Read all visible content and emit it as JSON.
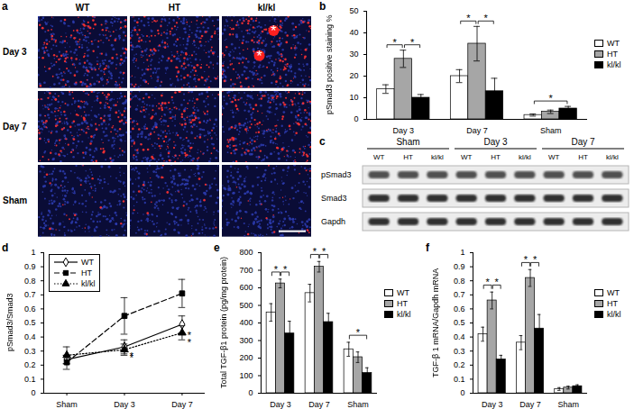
{
  "figure": {
    "panel_a": {
      "label": "a",
      "columns": [
        "WT",
        "HT",
        "kl/kl"
      ],
      "rows": [
        "Day 3",
        "Day 7",
        "Sham"
      ],
      "annotations": [
        {
          "row": "Day 3",
          "column": "kl/kl",
          "text": "*"
        },
        {
          "row": "Day 3",
          "column": "kl/kl",
          "text": "*"
        }
      ]
    },
    "panel_c": {
      "label": "c",
      "groups": [
        "Sham",
        "Day 3",
        "Day 7"
      ],
      "lanes": [
        "WT",
        "HT",
        "kl/kl"
      ],
      "bands": [
        "pSmad3",
        "Smad3",
        "Gapdh"
      ]
    }
  },
  "chart_data": [
    {
      "panel": "b",
      "type": "bar",
      "y_label": "pSmad3 positive staining %",
      "categories": [
        "Day 3",
        "Day 7",
        "Sham"
      ],
      "series": [
        {
          "name": "WT",
          "color": "#ffffff",
          "values": [
            14,
            20,
            2
          ],
          "errors": [
            2,
            3,
            0.5
          ]
        },
        {
          "name": "HT",
          "color": "#a6a6a6",
          "values": [
            28,
            35,
            3.5
          ],
          "errors": [
            4,
            8,
            0.8
          ]
        },
        {
          "name": "kl/kl",
          "color": "#000000",
          "values": [
            10,
            13,
            5
          ],
          "errors": [
            1.5,
            6,
            1
          ]
        }
      ],
      "ylim": [
        0,
        50
      ],
      "yticks": [
        0,
        10,
        20,
        30,
        40,
        50
      ],
      "legend": "right",
      "significance": [
        {
          "category": "Day 3",
          "between": [
            "WT",
            "HT"
          ],
          "text": "*"
        },
        {
          "category": "Day 3",
          "between": [
            "HT",
            "kl/kl"
          ],
          "text": "*"
        },
        {
          "category": "Day 7",
          "between": [
            "WT",
            "HT"
          ],
          "text": "*"
        },
        {
          "category": "Day 7",
          "between": [
            "HT",
            "kl/kl"
          ],
          "text": "*"
        },
        {
          "category": "Sham",
          "between": [
            "WT",
            "kl/kl"
          ],
          "text": "*"
        }
      ]
    },
    {
      "panel": "d",
      "type": "line",
      "y_label": "pSmad3/Smad3",
      "categories": [
        "Sham",
        "Day 3",
        "Day 7"
      ],
      "series": [
        {
          "name": "WT",
          "color": "#000000",
          "marker": "diamond",
          "line_style": "solid",
          "values": [
            0.24,
            0.33,
            0.49
          ],
          "errors": [
            0.03,
            0.05,
            0.06
          ]
        },
        {
          "name": "HT",
          "color": "#000000",
          "marker": "square",
          "line_style": "dashed",
          "values": [
            0.22,
            0.55,
            0.71
          ],
          "errors": [
            0.05,
            0.13,
            0.1
          ]
        },
        {
          "name": "kl/kl",
          "color": "#000000",
          "marker": "triangle",
          "line_style": "dotted",
          "values": [
            0.27,
            0.31,
            0.43
          ],
          "errors": [
            0.06,
            0.04,
            0.05
          ]
        }
      ],
      "ylim": [
        0,
        1
      ],
      "yticks": [
        0,
        0.1,
        0.2,
        0.3,
        0.4,
        0.5,
        0.6,
        0.7,
        0.8,
        0.9,
        1
      ],
      "legend": "top-left",
      "annotations": [
        {
          "text": "*",
          "category": "Day 3",
          "series": "WT"
        },
        {
          "text": "*",
          "category": "Day 3",
          "series": "kl/kl"
        },
        {
          "text": "*",
          "category": "Day 7",
          "series": "WT"
        },
        {
          "text": "*",
          "category": "Day 7",
          "series": "kl/kl"
        }
      ]
    },
    {
      "panel": "e",
      "type": "bar",
      "y_label": "Total TGF-β1 protein (pg/mg protein)",
      "categories": [
        "Day 3",
        "Day 7",
        "Sham"
      ],
      "series": [
        {
          "name": "WT",
          "color": "#ffffff",
          "values": [
            460,
            570,
            250
          ],
          "errors": [
            50,
            50,
            40
          ]
        },
        {
          "name": "HT",
          "color": "#a6a6a6",
          "values": [
            625,
            720,
            205
          ],
          "errors": [
            25,
            30,
            30
          ]
        },
        {
          "name": "kl/kl",
          "color": "#000000",
          "values": [
            340,
            405,
            115
          ],
          "errors": [
            70,
            50,
            30
          ]
        }
      ],
      "ylim": [
        0,
        800
      ],
      "yticks": [
        0,
        100,
        200,
        300,
        400,
        500,
        600,
        700,
        800
      ],
      "legend": "right",
      "significance": [
        {
          "category": "Day 3",
          "between": [
            "WT",
            "HT"
          ],
          "text": "*"
        },
        {
          "category": "Day 3",
          "between": [
            "HT",
            "kl/kl"
          ],
          "text": "*"
        },
        {
          "category": "Day 7",
          "between": [
            "WT",
            "HT"
          ],
          "text": "*"
        },
        {
          "category": "Day 7",
          "between": [
            "HT",
            "kl/kl"
          ],
          "text": "*"
        },
        {
          "category": "Sham",
          "between": [
            "WT",
            "kl/kl"
          ],
          "text": "*"
        }
      ]
    },
    {
      "panel": "f",
      "type": "bar",
      "y_label": "TGF-β 1 mRNA/Gapdh mRNA",
      "categories": [
        "Day 3",
        "Day 7",
        "Sham"
      ],
      "series": [
        {
          "name": "WT",
          "color": "#ffffff",
          "values": [
            0.42,
            0.36,
            0.03
          ],
          "errors": [
            0.05,
            0.05,
            0.01
          ]
        },
        {
          "name": "HT",
          "color": "#a6a6a6",
          "values": [
            0.66,
            0.82,
            0.04
          ],
          "errors": [
            0.06,
            0.06,
            0.01
          ]
        },
        {
          "name": "kl/kl",
          "color": "#000000",
          "values": [
            0.24,
            0.46,
            0.05
          ],
          "errors": [
            0.03,
            0.1,
            0.01
          ]
        }
      ],
      "ylim": [
        0,
        1
      ],
      "yticks": [
        0,
        0.1,
        0.2,
        0.3,
        0.4,
        0.5,
        0.6,
        0.7,
        0.8,
        0.9,
        1
      ],
      "legend": "right",
      "significance": [
        {
          "category": "Day 3",
          "between": [
            "WT",
            "HT"
          ],
          "text": "*"
        },
        {
          "category": "Day 3",
          "between": [
            "HT",
            "kl/kl"
          ],
          "text": "*"
        },
        {
          "category": "Day 7",
          "between": [
            "WT",
            "HT"
          ],
          "text": "*"
        },
        {
          "category": "Day 7",
          "between": [
            "HT",
            "kl/kl"
          ],
          "text": "*"
        }
      ]
    }
  ]
}
